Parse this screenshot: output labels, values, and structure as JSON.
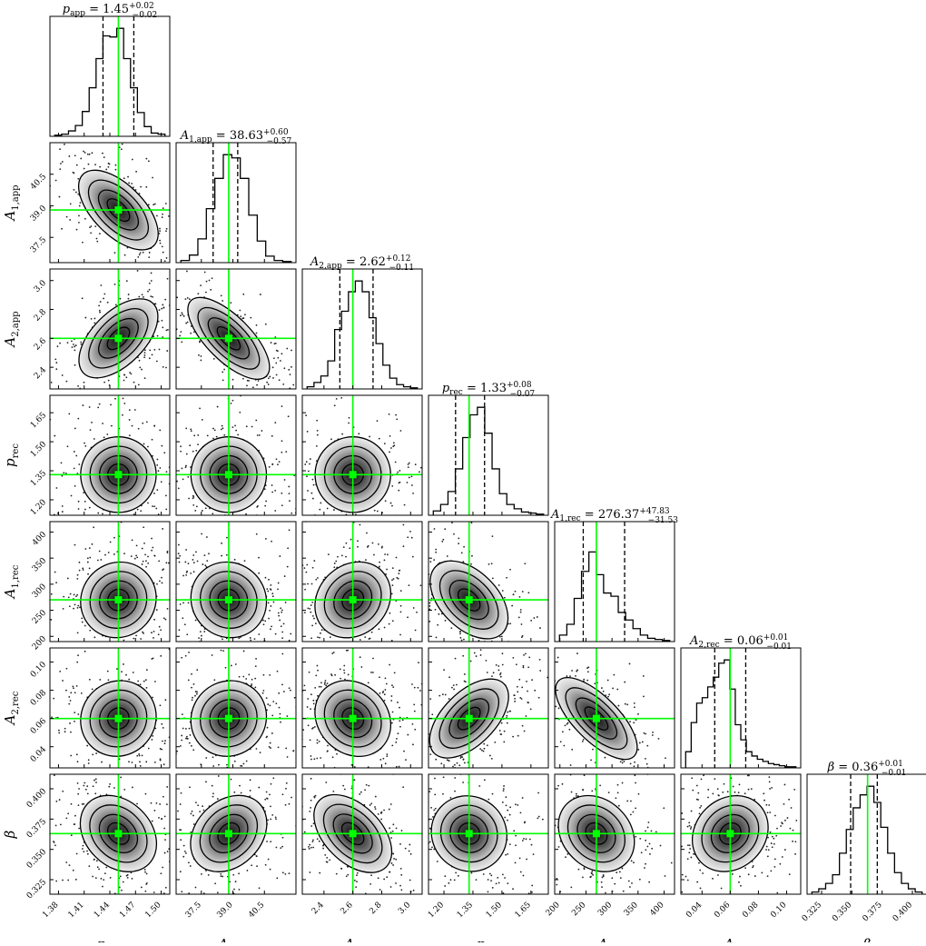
{
  "colors": {
    "truth": "#00ff00",
    "ink": "#000000",
    "background": "#ffffff"
  },
  "chart_data": {
    "type": "corner",
    "parameters": [
      {
        "name": "p_app",
        "label": "p",
        "sub": "app",
        "median": 1.45,
        "plus": "0.02",
        "minus": "0.02",
        "median_text": "1.45",
        "range": [
          1.37,
          1.51
        ],
        "ticks": [
          "1.38",
          "1.41",
          "1.44",
          "1.47",
          "1.50"
        ],
        "tick_values": [
          1.38,
          1.41,
          1.44,
          1.47,
          1.5
        ],
        "truth": 1.45
      },
      {
        "name": "A1_app",
        "label": "A",
        "sub": "1,app",
        "median": 38.63,
        "plus": "0.60",
        "minus": "0.57",
        "median_text": "38.63",
        "range": [
          36.3,
          42.0
        ],
        "ticks": [
          "37.5",
          "39.0",
          "40.5"
        ],
        "tick_values": [
          37.5,
          39.0,
          40.5
        ],
        "truth": 38.8
      },
      {
        "name": "A2_app",
        "label": "A",
        "sub": "2,app",
        "median": 2.62,
        "plus": "0.12",
        "minus": "0.11",
        "median_text": "2.62",
        "range": [
          2.25,
          3.08
        ],
        "ticks": [
          "2.4",
          "2.6",
          "2.8",
          "3.0"
        ],
        "tick_values": [
          2.4,
          2.6,
          2.8,
          3.0
        ],
        "truth": 2.6
      },
      {
        "name": "p_rec",
        "label": "p",
        "sub": "rec",
        "median": 1.33,
        "plus": "0.08",
        "minus": "0.07",
        "median_text": "1.33",
        "range": [
          1.12,
          1.74
        ],
        "ticks": [
          "1.20",
          "1.35",
          "1.50",
          "1.65"
        ],
        "tick_values": [
          1.2,
          1.35,
          1.5,
          1.65
        ],
        "truth": 1.33
      },
      {
        "name": "A1_rec",
        "label": "A",
        "sub": "1,rec",
        "median": 276.37,
        "plus": "47.83",
        "minus": "31.53",
        "median_text": "276.37",
        "range": [
          190,
          420
        ],
        "ticks": [
          "200",
          "250",
          "300",
          "350",
          "400"
        ],
        "tick_values": [
          200,
          250,
          300,
          350,
          400
        ],
        "truth": 270
      },
      {
        "name": "A2_rec",
        "label": "A",
        "sub": "2,rec",
        "median": 0.06,
        "plus": "0.01",
        "minus": "0.01",
        "median_text": "0.06",
        "range": [
          0.025,
          0.11
        ],
        "ticks": [
          "0.04",
          "0.06",
          "0.08",
          "0.10"
        ],
        "tick_values": [
          0.04,
          0.06,
          0.08,
          0.1
        ],
        "truth": 0.06
      },
      {
        "name": "beta",
        "label": "β",
        "sub": "",
        "median": 0.36,
        "plus": "0.01",
        "minus": "0.01",
        "median_text": "0.36",
        "range": [
          0.313,
          0.412
        ],
        "ticks": [
          "0.325",
          "0.350",
          "0.375",
          "0.400"
        ],
        "tick_values": [
          0.325,
          0.35,
          0.375,
          0.4
        ],
        "truth": 0.363
      }
    ],
    "quantile_lines": [
      [
        1.432,
        1.468
      ],
      [
        38.06,
        39.23
      ],
      [
        2.51,
        2.74
      ],
      [
        1.26,
        1.41
      ],
      [
        244.8,
        324.2
      ],
      [
        0.049,
        0.071
      ],
      [
        0.349,
        0.371
      ]
    ],
    "histograms": [
      [
        0.01,
        0.02,
        0.05,
        0.1,
        0.23,
        0.45,
        0.72,
        0.93,
        0.92,
        1.0,
        0.72,
        0.45,
        0.22,
        0.09,
        0.03,
        0.02
      ],
      [
        0.02,
        0.07,
        0.22,
        0.5,
        0.78,
        1.0,
        0.97,
        0.78,
        0.44,
        0.2,
        0.06,
        0.02,
        0.01
      ],
      [
        0.02,
        0.06,
        0.12,
        0.26,
        0.55,
        0.72,
        0.9,
        1.0,
        0.9,
        0.66,
        0.42,
        0.22,
        0.1,
        0.04,
        0.02,
        0.01
      ],
      [
        0.04,
        0.1,
        0.22,
        0.43,
        0.72,
        0.93,
        1.0,
        0.76,
        0.43,
        0.2,
        0.1,
        0.06,
        0.03,
        0.02,
        0.01
      ],
      [
        0.06,
        0.16,
        0.4,
        0.65,
        0.83,
        0.62,
        0.45,
        0.42,
        0.27,
        0.2,
        0.12,
        0.06,
        0.03,
        0.02,
        0.01
      ],
      [
        0.15,
        0.42,
        0.6,
        0.65,
        0.75,
        0.84,
        0.97,
        1.0,
        0.73,
        0.4,
        0.26,
        0.15,
        0.11,
        0.08,
        0.06,
        0.04,
        0.03,
        0.02,
        0.01,
        0.01
      ],
      [
        0.02,
        0.05,
        0.1,
        0.18,
        0.38,
        0.6,
        0.8,
        0.92,
        1.0,
        0.85,
        0.62,
        0.38,
        0.2,
        0.1,
        0.05,
        0.02
      ]
    ],
    "correlations": {
      "1-0": -0.6,
      "2-0": 0.55,
      "2-1": -0.75,
      "3-0": 0.0,
      "3-1": 0.0,
      "3-2": 0.0,
      "4-0": 0.05,
      "4-1": -0.05,
      "4-2": 0.15,
      "4-3": -0.45,
      "5-0": 0.05,
      "5-1": 0.05,
      "5-2": -0.15,
      "5-3": 0.55,
      "5-4": -0.75,
      "6-0": -0.25,
      "6-1": 0.25,
      "6-2": -0.45,
      "6-3": -0.05,
      "6-4": -0.2,
      "6-5": 0.15
    },
    "grid": false,
    "legend": "none"
  }
}
